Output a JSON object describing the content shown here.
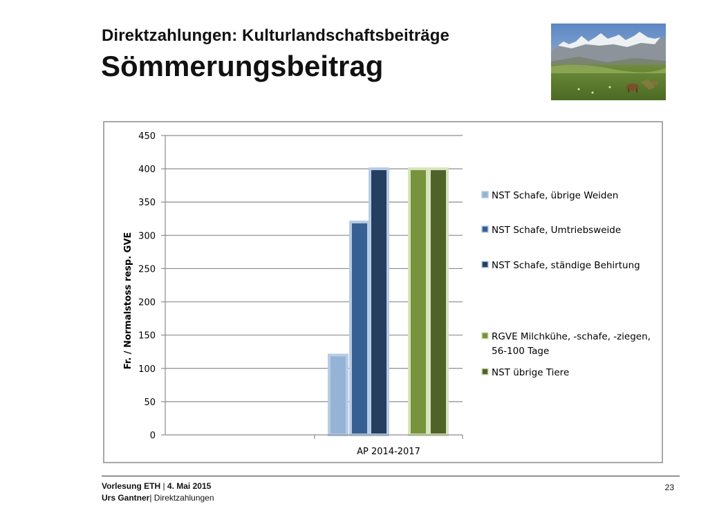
{
  "header": {
    "title_line1": "Direktzahlungen: Kulturlandschaftsbeiträge",
    "title_line2": "Sömmerungsbeitrag"
  },
  "photo": {
    "icon": "alpine-pasture-photo"
  },
  "chart_data": {
    "type": "bar",
    "categories": [
      "AP 2014-2017"
    ],
    "ylabel": "Fr. / Normalstoss resp. GVE",
    "xlabel": "",
    "ylim": [
      0,
      450
    ],
    "yticks": [
      0,
      50,
      100,
      150,
      200,
      250,
      300,
      350,
      400,
      450
    ],
    "grid": true,
    "legend_position": "right",
    "series": [
      {
        "name": "NST Schafe, übrige Weiden",
        "values": [
          120
        ],
        "color": "#95b3d7",
        "border": "#b8cce4"
      },
      {
        "name": "NST Schafe, Umtriebsweide",
        "values": [
          320
        ],
        "color": "#376092",
        "border": "#b8cce4"
      },
      {
        "name": "NST Schafe, ständige Behirtung",
        "values": [
          400
        ],
        "color": "#243f60",
        "border": "#b8cce4"
      },
      {
        "name": "RGVE Milchkühe, -schafe, -ziegen, 56-100 Tage",
        "values": [
          400
        ],
        "color": "#77933c",
        "border": "#d7e4bd"
      },
      {
        "name": "NST übrige Tiere",
        "values": [
          400
        ],
        "color": "#4f6228",
        "border": "#d7e4bd"
      }
    ]
  },
  "footer": {
    "left_bold": "Vorlesung ETH",
    "left_sep": " |  ",
    "left_date": "4. Mai 2015",
    "author_bold": "Urs Gantner",
    "author_rest": "| Direktzahlungen",
    "page_number": "23"
  }
}
